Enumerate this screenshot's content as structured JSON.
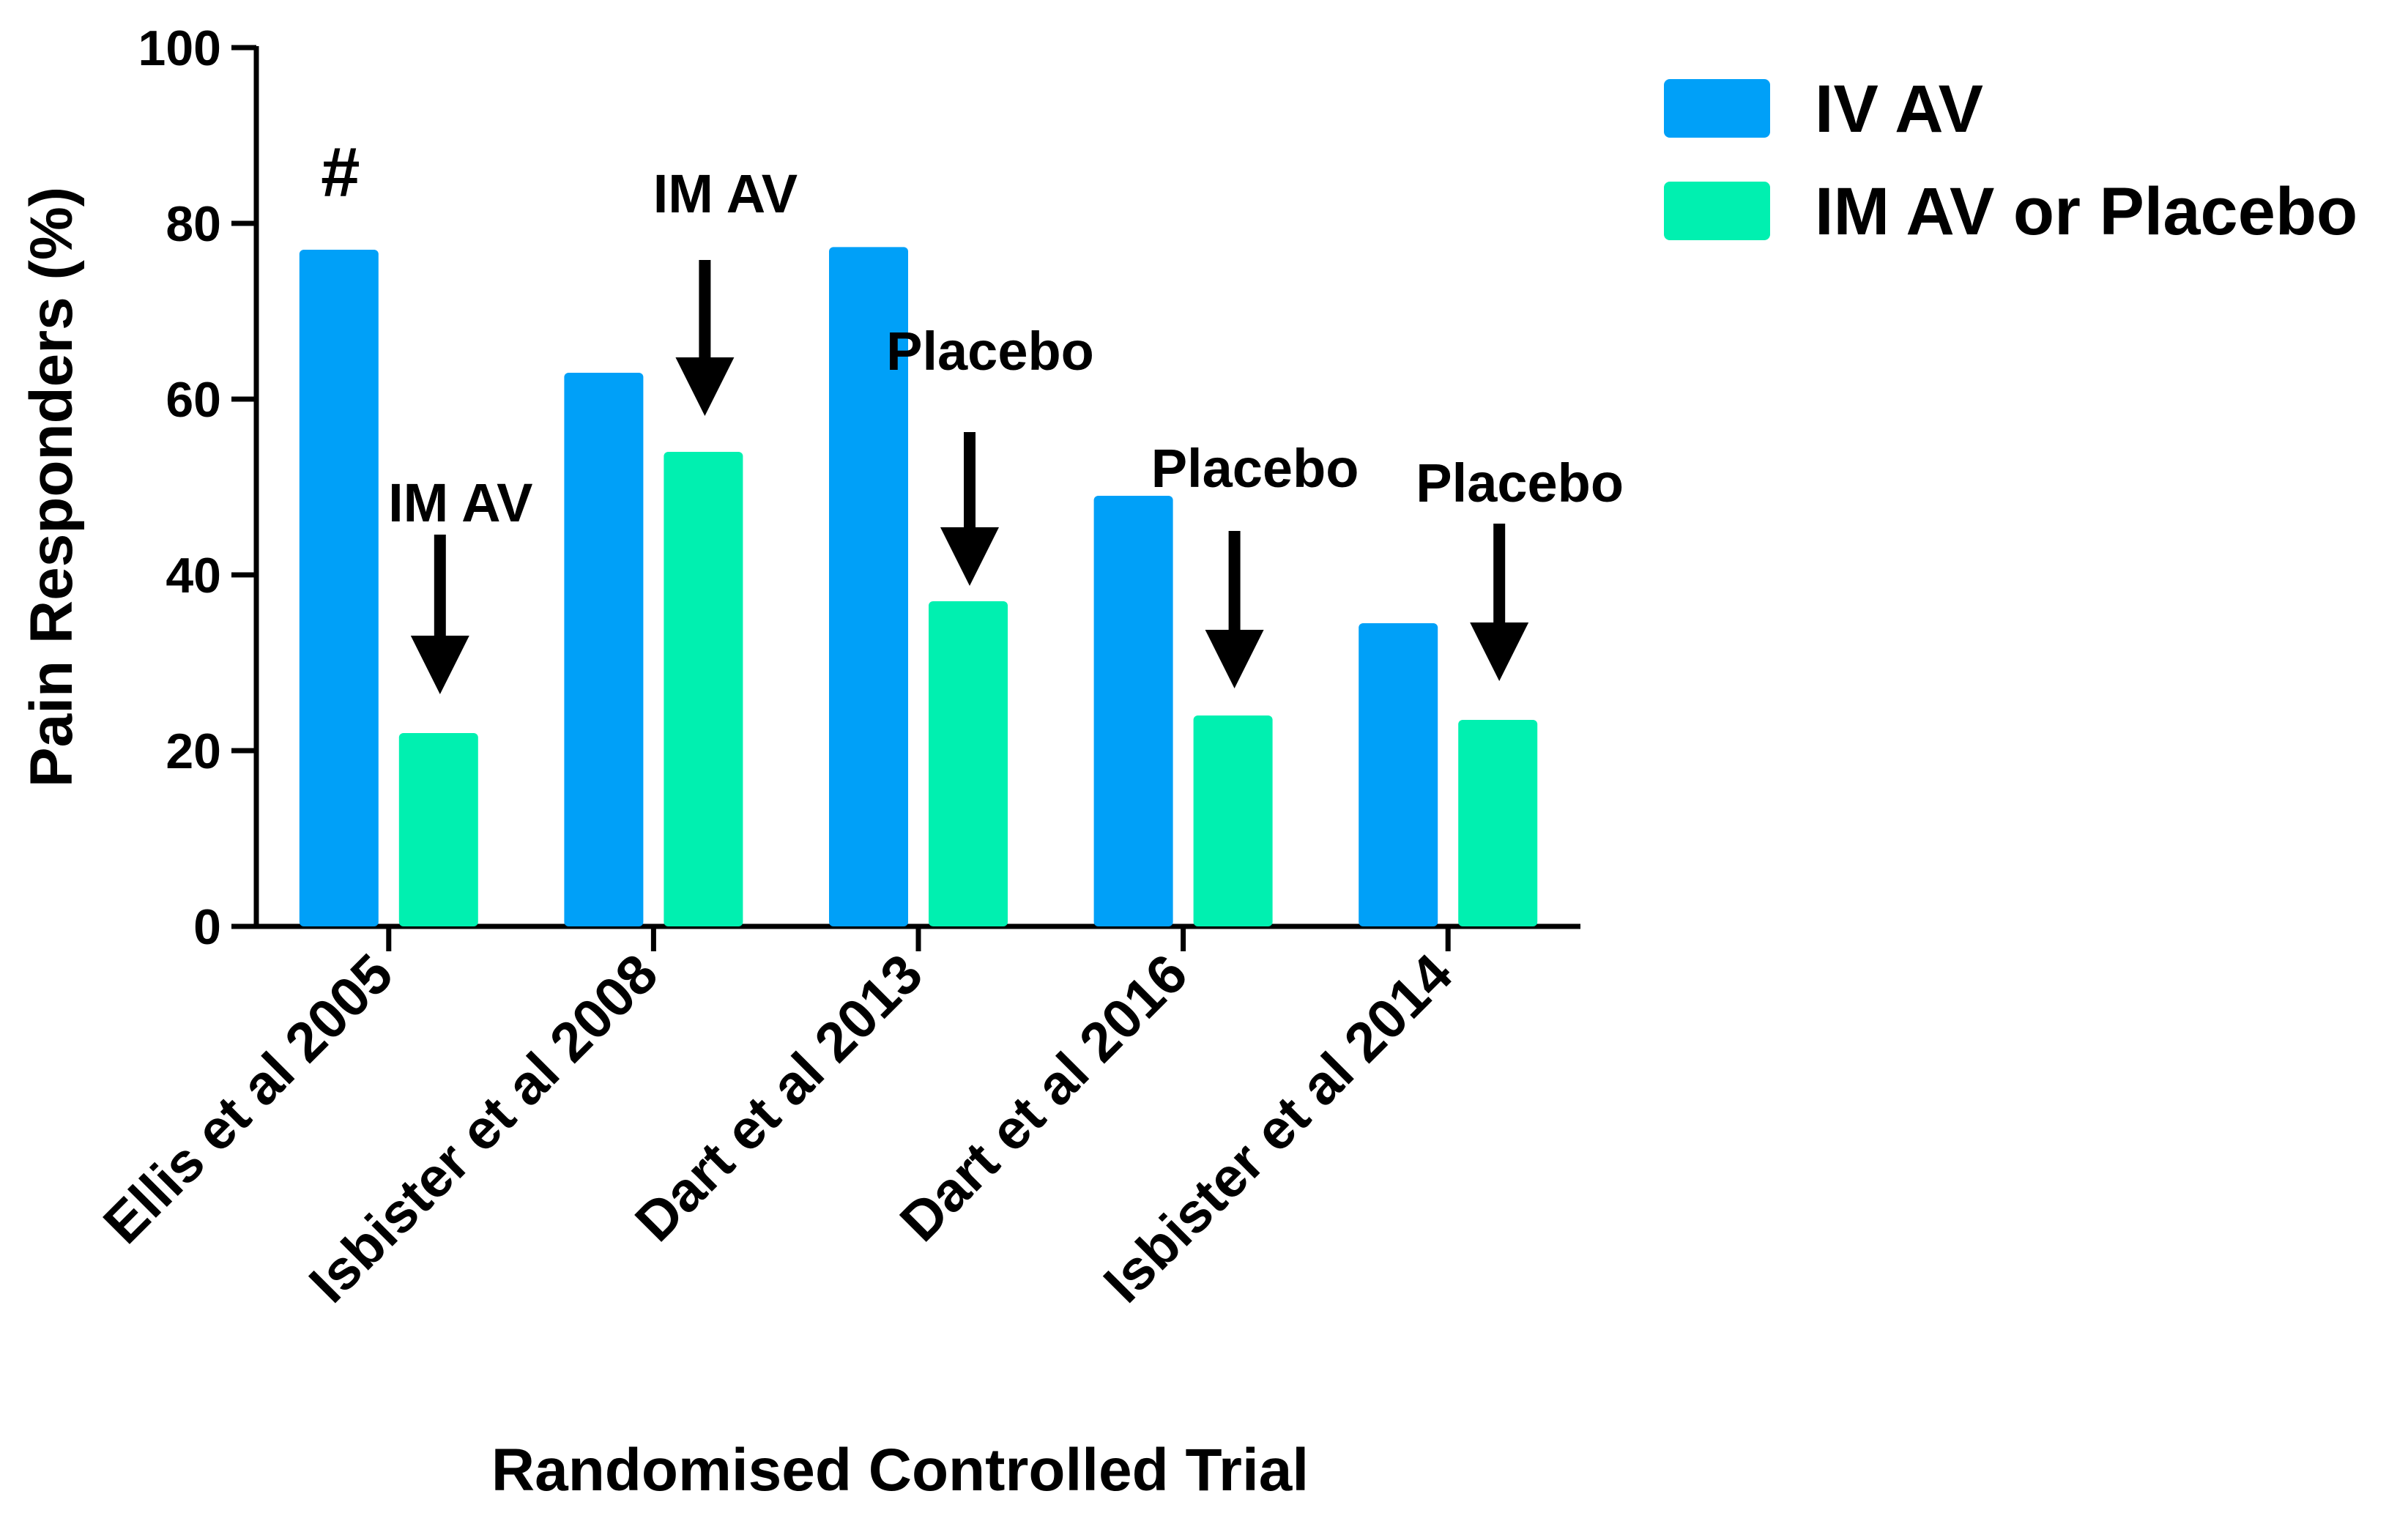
{
  "chart_data": {
    "type": "bar",
    "title": "",
    "xlabel": "Randomised Controlled Trial",
    "ylabel": "Pain Responders (%)",
    "ylim": [
      0,
      100
    ],
    "yticks": [
      0,
      20,
      40,
      60,
      80,
      100
    ],
    "grid": false,
    "legend_position": "top-right",
    "categories": [
      "Ellis et al 2005",
      "Isbister et al 2008",
      "Dart et al 2013",
      "Dart et al 2016",
      "Isbister et al 2014"
    ],
    "series": [
      {
        "name": "IV AV",
        "color": "#00A0F8",
        "values": [
          77,
          63,
          77.3,
          49,
          34.5
        ]
      },
      {
        "name": "IM AV or Placebo",
        "color": "#00F0B0",
        "values": [
          22,
          54,
          37,
          24,
          23.5
        ]
      }
    ],
    "annotations": [
      {
        "category_index": 0,
        "label": "IM AV"
      },
      {
        "category_index": 1,
        "label": "IM AV"
      },
      {
        "category_index": 2,
        "label": "Placebo"
      },
      {
        "category_index": 3,
        "label": "Placebo"
      },
      {
        "category_index": 4,
        "label": "Placebo"
      }
    ],
    "significance_marker": {
      "category_index": 0,
      "symbol": "#"
    }
  }
}
